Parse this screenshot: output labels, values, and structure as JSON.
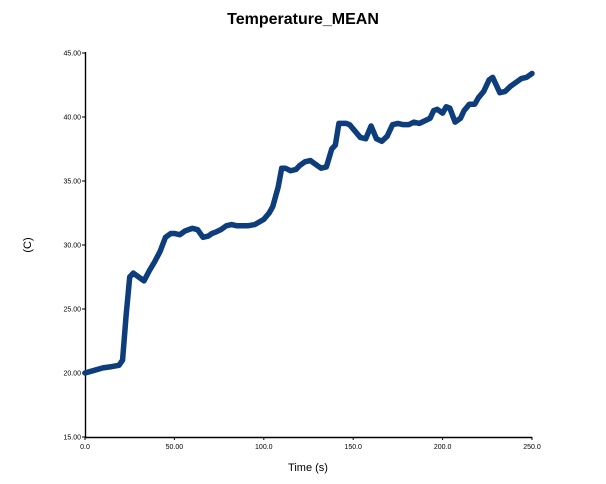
{
  "chart_data": {
    "type": "line",
    "title": "Temperature_MEAN",
    "xlabel": "Time (s)",
    "ylabel": "(C)",
    "xlim": [
      0,
      250
    ],
    "ylim": [
      15,
      45
    ],
    "x_ticks": [
      "0.0",
      "50.00",
      "100.0",
      "150.0",
      "200.0",
      "250.0"
    ],
    "y_ticks": [
      "15.00",
      "20.00",
      "25.00",
      "30.00",
      "35.00",
      "40.00",
      "45.00"
    ],
    "grid": false,
    "legend": "none",
    "series": [
      {
        "color": "#0d3d7a",
        "x": [
          0,
          5,
          10,
          15,
          19,
          21,
          23,
          25,
          27,
          30,
          33,
          36,
          39,
          42,
          45,
          48,
          50,
          53,
          56,
          58,
          60,
          63,
          66,
          69,
          71,
          73,
          76,
          79,
          82,
          85,
          88,
          91,
          95,
          100,
          103,
          105,
          108,
          110,
          112,
          115,
          118,
          120,
          123,
          126,
          129,
          132,
          135,
          138,
          140,
          142,
          144,
          146,
          148,
          151,
          154,
          157,
          160,
          163,
          166,
          169,
          172,
          175,
          178,
          181,
          184,
          187,
          190,
          193,
          195,
          197,
          200,
          202,
          204,
          207,
          210,
          212,
          215,
          218,
          220,
          223,
          226,
          228,
          230,
          232,
          235,
          238,
          241,
          244,
          247,
          250
        ],
        "values": [
          20.0,
          20.2,
          20.4,
          20.5,
          20.6,
          21.0,
          24.5,
          27.5,
          27.8,
          27.5,
          27.2,
          28.0,
          28.7,
          29.5,
          30.6,
          30.9,
          30.9,
          30.8,
          31.1,
          31.2,
          31.3,
          31.2,
          30.6,
          30.7,
          30.9,
          31.0,
          31.2,
          31.5,
          31.6,
          31.5,
          31.5,
          31.5,
          31.6,
          32.0,
          32.5,
          33.0,
          34.5,
          36.0,
          36.0,
          35.8,
          35.9,
          36.2,
          36.5,
          36.6,
          36.3,
          36.0,
          36.1,
          37.5,
          37.8,
          39.5,
          39.5,
          39.5,
          39.4,
          38.9,
          38.4,
          38.3,
          39.3,
          38.3,
          38.1,
          38.5,
          39.4,
          39.5,
          39.4,
          39.4,
          39.6,
          39.5,
          39.7,
          39.9,
          40.5,
          40.6,
          40.3,
          40.8,
          40.7,
          39.6,
          39.9,
          40.5,
          41.0,
          41.0,
          41.5,
          42.0,
          42.9,
          43.1,
          42.5,
          41.9,
          42.0,
          42.4,
          42.7,
          43.0,
          43.1,
          43.4
        ]
      }
    ]
  }
}
